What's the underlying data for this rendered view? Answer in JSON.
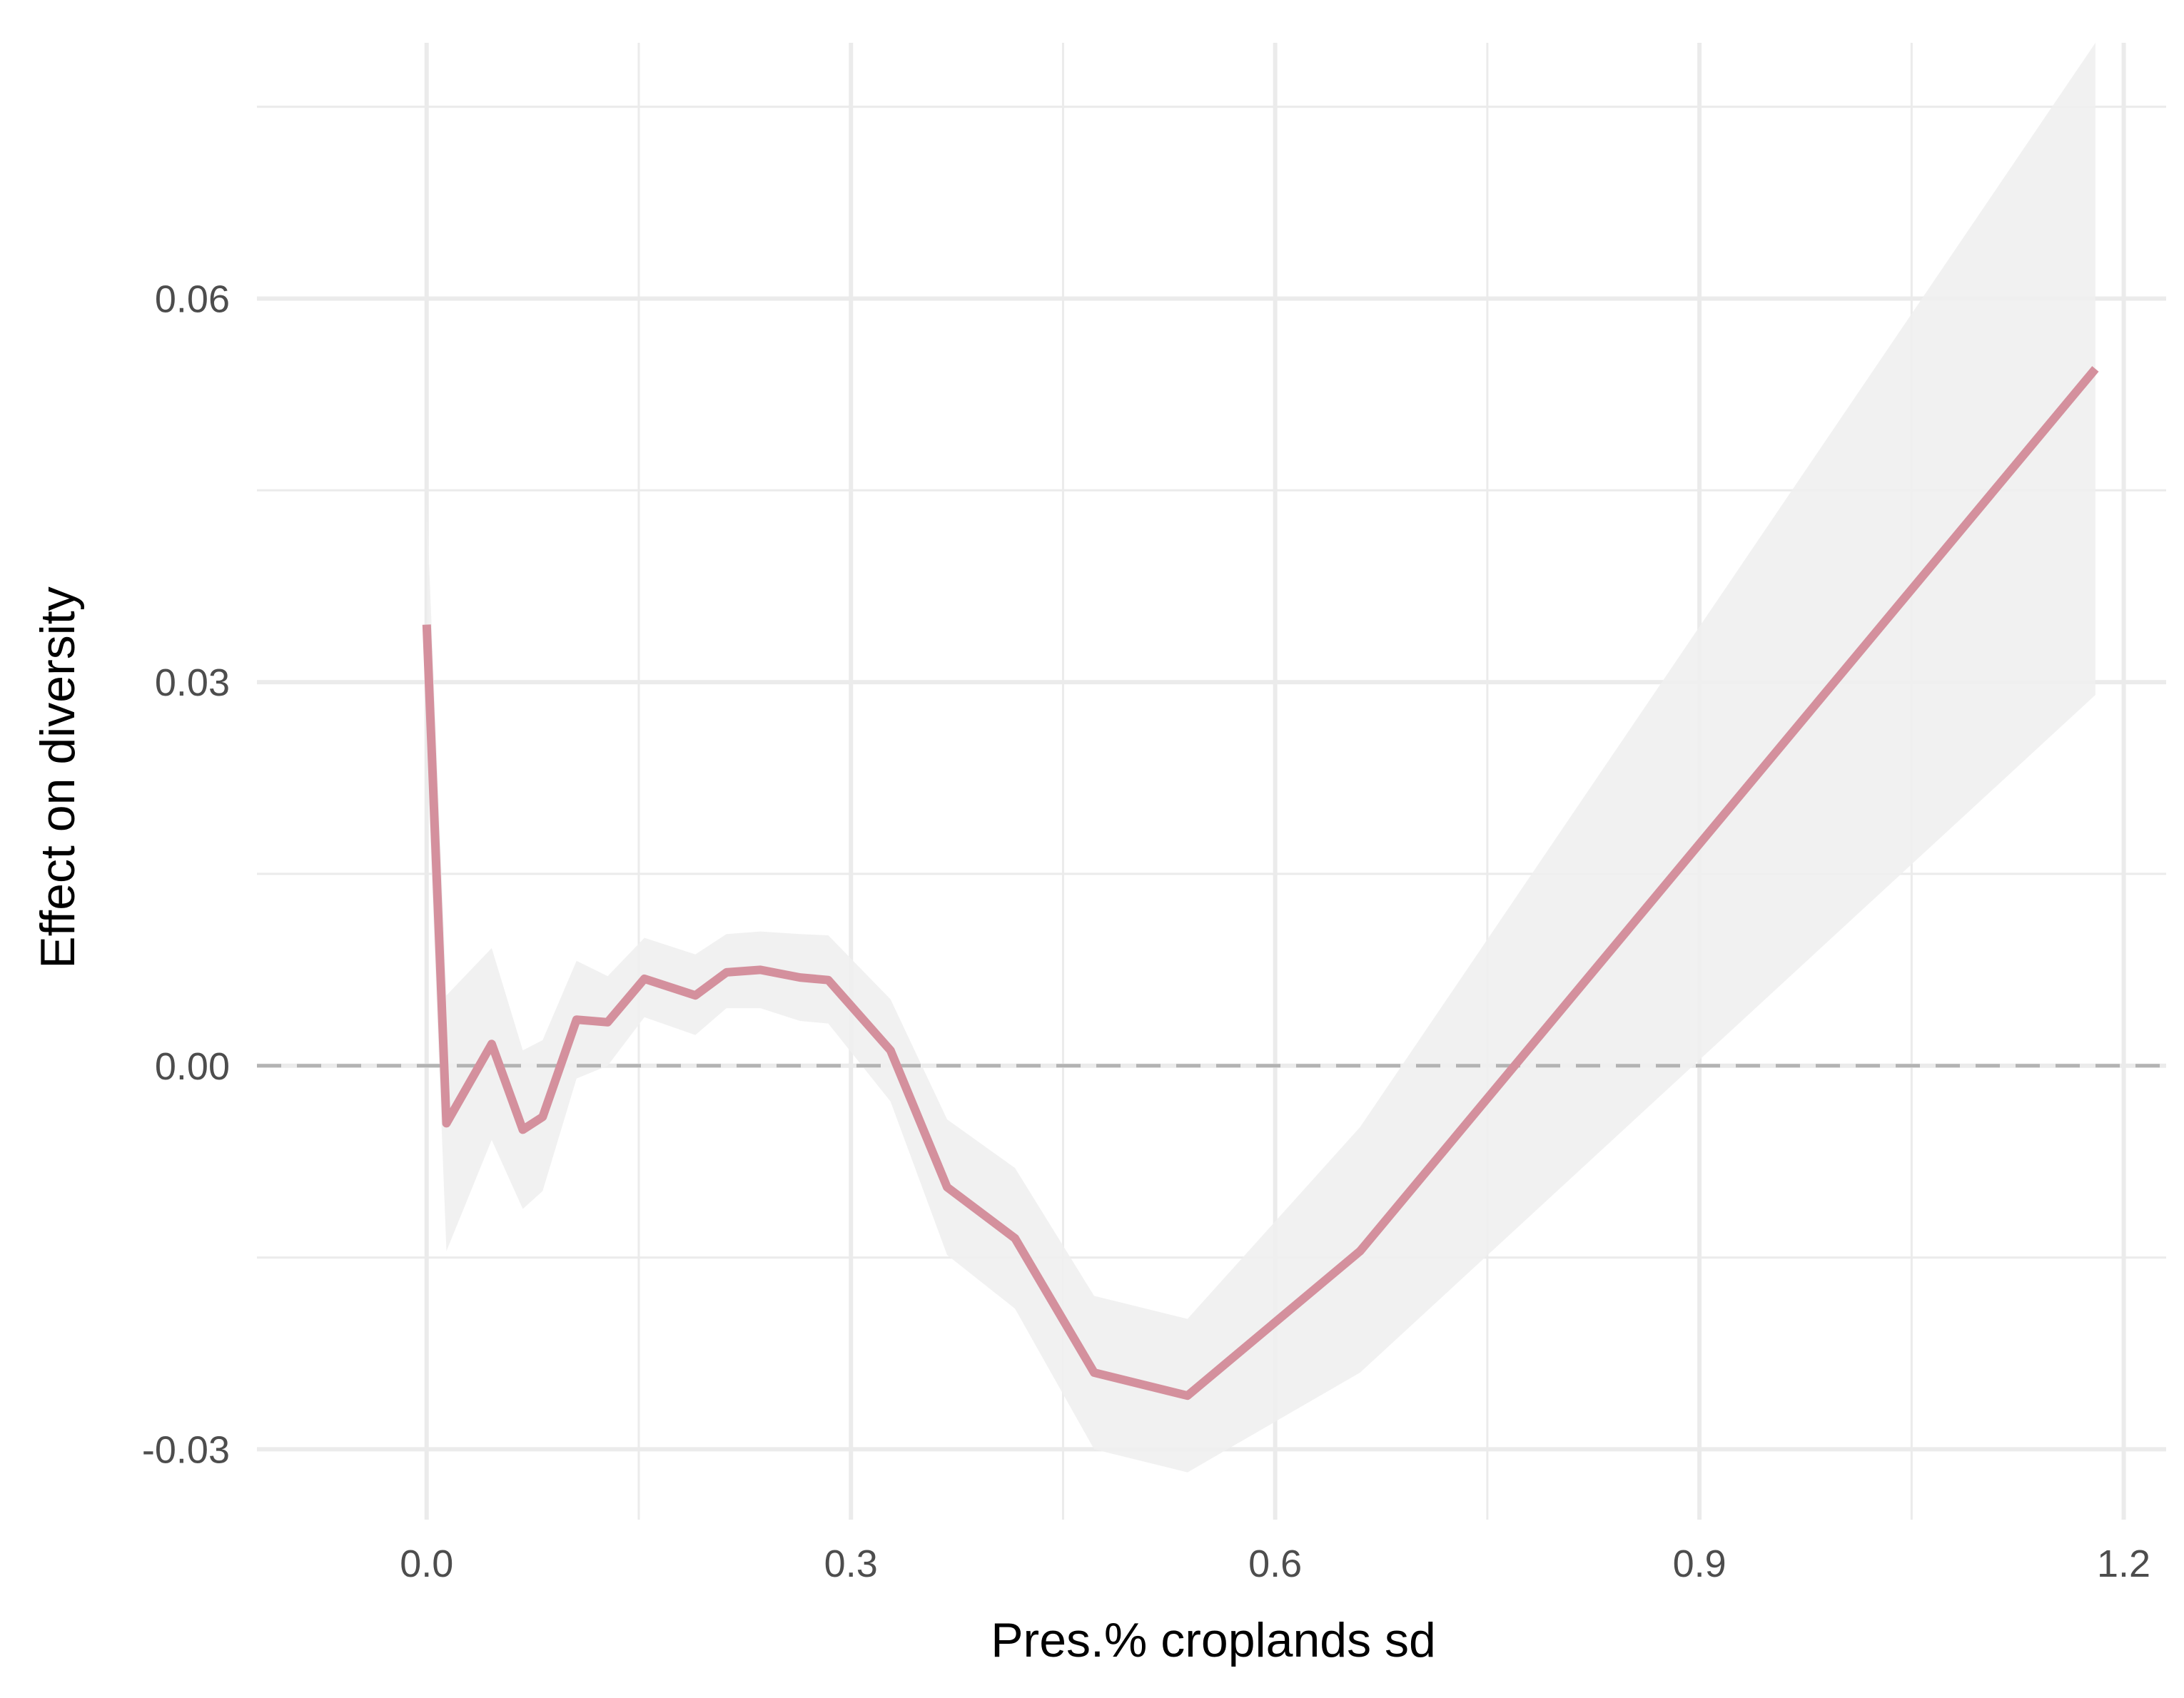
{
  "chart_data": {
    "type": "line",
    "title": "",
    "xlabel": "Pres.% croplands sd",
    "ylabel": "Effect on diversity",
    "xlim": [
      -0.12,
      1.23
    ],
    "ylim": [
      -0.0355,
      0.08
    ],
    "x_ticks": [
      {
        "value": 0.0,
        "label": "0.0"
      },
      {
        "value": 0.3,
        "label": "0.3"
      },
      {
        "value": 0.6,
        "label": "0.6"
      },
      {
        "value": 0.9,
        "label": "0.9"
      },
      {
        "value": 1.2,
        "label": "1.2"
      }
    ],
    "y_ticks": [
      {
        "value": -0.03,
        "label": "-0.03"
      },
      {
        "value": 0.0,
        "label": "0.00"
      },
      {
        "value": 0.03,
        "label": "0.03"
      },
      {
        "value": 0.06,
        "label": "0.06"
      }
    ],
    "x_minor": [
      0.15,
      0.45,
      0.75,
      1.05
    ],
    "y_minor": [
      -0.015,
      0.015,
      0.045,
      0.075
    ],
    "grid": true,
    "reference_line": {
      "y": 0.0,
      "style": "dashed",
      "color": "#b3b3b3"
    },
    "series": [
      {
        "color": "#d4909d",
        "x": [
          0.0,
          0.014,
          0.046,
          0.068,
          0.082,
          0.106,
          0.128,
          0.154,
          0.19,
          0.212,
          0.236,
          0.264,
          0.284,
          0.328,
          0.368,
          0.416,
          0.472,
          0.538,
          0.66,
          1.18
        ],
        "y": [
          0.0345,
          -0.0045,
          0.0017,
          -0.005,
          -0.004,
          0.0036,
          0.0034,
          0.0068,
          0.0055,
          0.0073,
          0.0075,
          0.0069,
          0.0067,
          0.0012,
          -0.0095,
          -0.0135,
          -0.024,
          -0.0258,
          -0.0145,
          0.0545
        ],
        "lower": [
          0.025,
          -0.0145,
          -0.0058,
          -0.0112,
          -0.0098,
          -0.001,
          0.0,
          0.0038,
          0.0024,
          0.0045,
          0.0045,
          0.0035,
          0.0033,
          -0.0028,
          -0.0148,
          -0.019,
          -0.03,
          -0.0318,
          -0.024,
          0.029
        ],
        "upper": [
          0.044,
          0.0055,
          0.0092,
          0.0012,
          0.002,
          0.0082,
          0.007,
          0.01,
          0.0087,
          0.0103,
          0.0105,
          0.0103,
          0.0102,
          0.0052,
          -0.0042,
          -0.008,
          -0.018,
          -0.0198,
          -0.0048,
          0.08
        ]
      }
    ]
  },
  "colors": {
    "background": "#ffffff",
    "grid_major": "#ebebeb",
    "grid_minor": "#ebebeb",
    "ribbon": "#efefef",
    "line": "#d4909d"
  }
}
